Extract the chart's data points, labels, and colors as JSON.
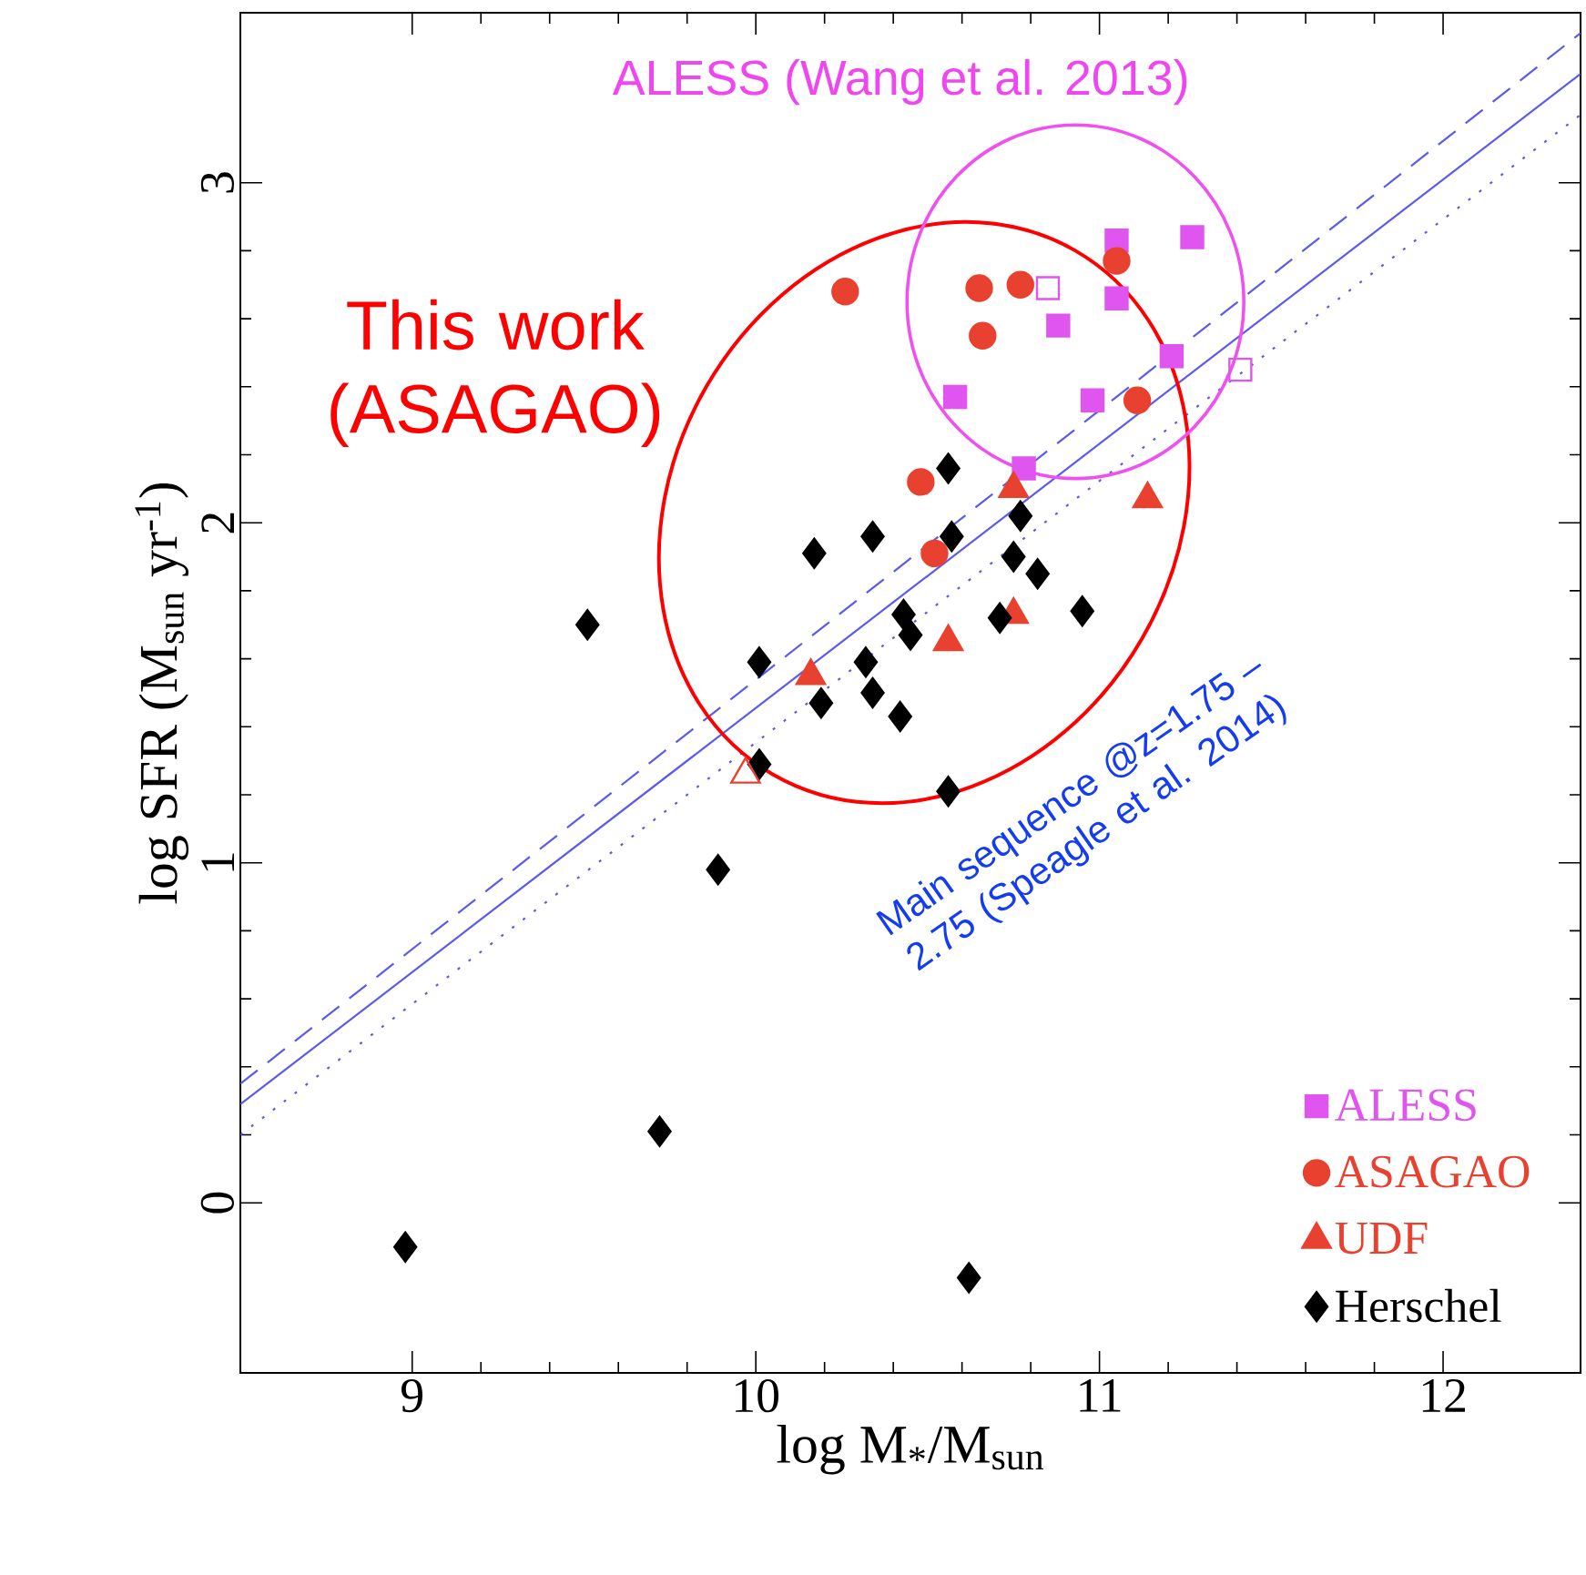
{
  "chart_data": {
    "type": "scatter",
    "xlabel": "log M$_{*}$/M$_{sun}$",
    "ylabel": "log SFR (M$_{sun}$ yr$^{-1}$)",
    "xlim": [
      8.5,
      12.4
    ],
    "ylim": [
      -0.5,
      3.5
    ],
    "xticks": [
      9,
      10,
      11,
      12
    ],
    "yticks": [
      0,
      1,
      2,
      3
    ],
    "legend": "bottom right",
    "annotations": [
      "ALESS (Wang et al. 2013)",
      "This work (ASAGAO)",
      "Main sequence @z=1.75 – 2.75 (Speagle et al. 2014)"
    ],
    "series": [
      {
        "type": "line",
        "line_style": "dashed",
        "color": "#5a5af0",
        "x": [
          8.5,
          12.4
        ],
        "values": [
          0.35,
          3.44
        ]
      },
      {
        "type": "line",
        "line_style": "solid",
        "color": "#5a5af0",
        "x": [
          8.5,
          12.4
        ],
        "values": [
          0.29,
          3.32
        ]
      },
      {
        "type": "line",
        "line_style": "dotted",
        "color": "#5a5af0",
        "x": [
          8.5,
          12.4
        ],
        "values": [
          0.2,
          3.2
        ]
      },
      {
        "name": "ALESS",
        "marker": "square",
        "color": "#e055f0",
        "x": [
          11.05,
          11.27,
          11.05,
          10.88,
          11.21,
          10.58,
          10.98,
          10.78
        ],
        "values": [
          2.83,
          2.84,
          2.66,
          2.58,
          2.49,
          2.37,
          2.36,
          2.16
        ]
      },
      {
        "marker": "square",
        "color": "#e055f0",
        "x": [
          10.85,
          11.41
        ],
        "values": [
          2.69,
          2.45
        ]
      },
      {
        "name": "ASAGAO",
        "marker": "circle",
        "color": "#e8412f",
        "x": [
          10.26,
          10.65,
          10.77,
          10.66,
          11.05,
          11.11,
          10.48,
          10.52
        ],
        "values": [
          2.68,
          2.69,
          2.7,
          2.55,
          2.77,
          2.36,
          2.12,
          1.91
        ]
      },
      {
        "name": "UDF",
        "marker": "triangle",
        "color": "#e8412f",
        "x": [
          10.75,
          11.14,
          10.75,
          10.56,
          10.16
        ],
        "values": [
          2.1,
          2.07,
          1.73,
          1.65,
          1.55
        ]
      },
      {
        "marker": "triangle",
        "color": "#e8412f",
        "x": [
          9.97
        ],
        "values": [
          1.26
        ]
      },
      {
        "name": "Herschel",
        "marker": "diamond",
        "color": "#000000",
        "x": [
          10.56,
          10.34,
          10.17,
          10.57,
          10.77,
          10.75,
          10.82,
          9.51,
          10.43,
          10.45,
          10.71,
          10.95,
          10.01,
          10.32,
          10.34,
          10.19,
          10.42,
          10.01,
          10.56,
          9.89,
          9.72,
          8.98,
          10.62
        ],
        "values": [
          2.16,
          1.96,
          1.91,
          1.96,
          2.02,
          1.9,
          1.85,
          1.7,
          1.73,
          1.67,
          1.72,
          1.74,
          1.59,
          1.59,
          1.5,
          1.47,
          1.43,
          1.29,
          1.21,
          0.98,
          0.21,
          -0.13,
          -0.22
        ]
      }
    ]
  }
}
